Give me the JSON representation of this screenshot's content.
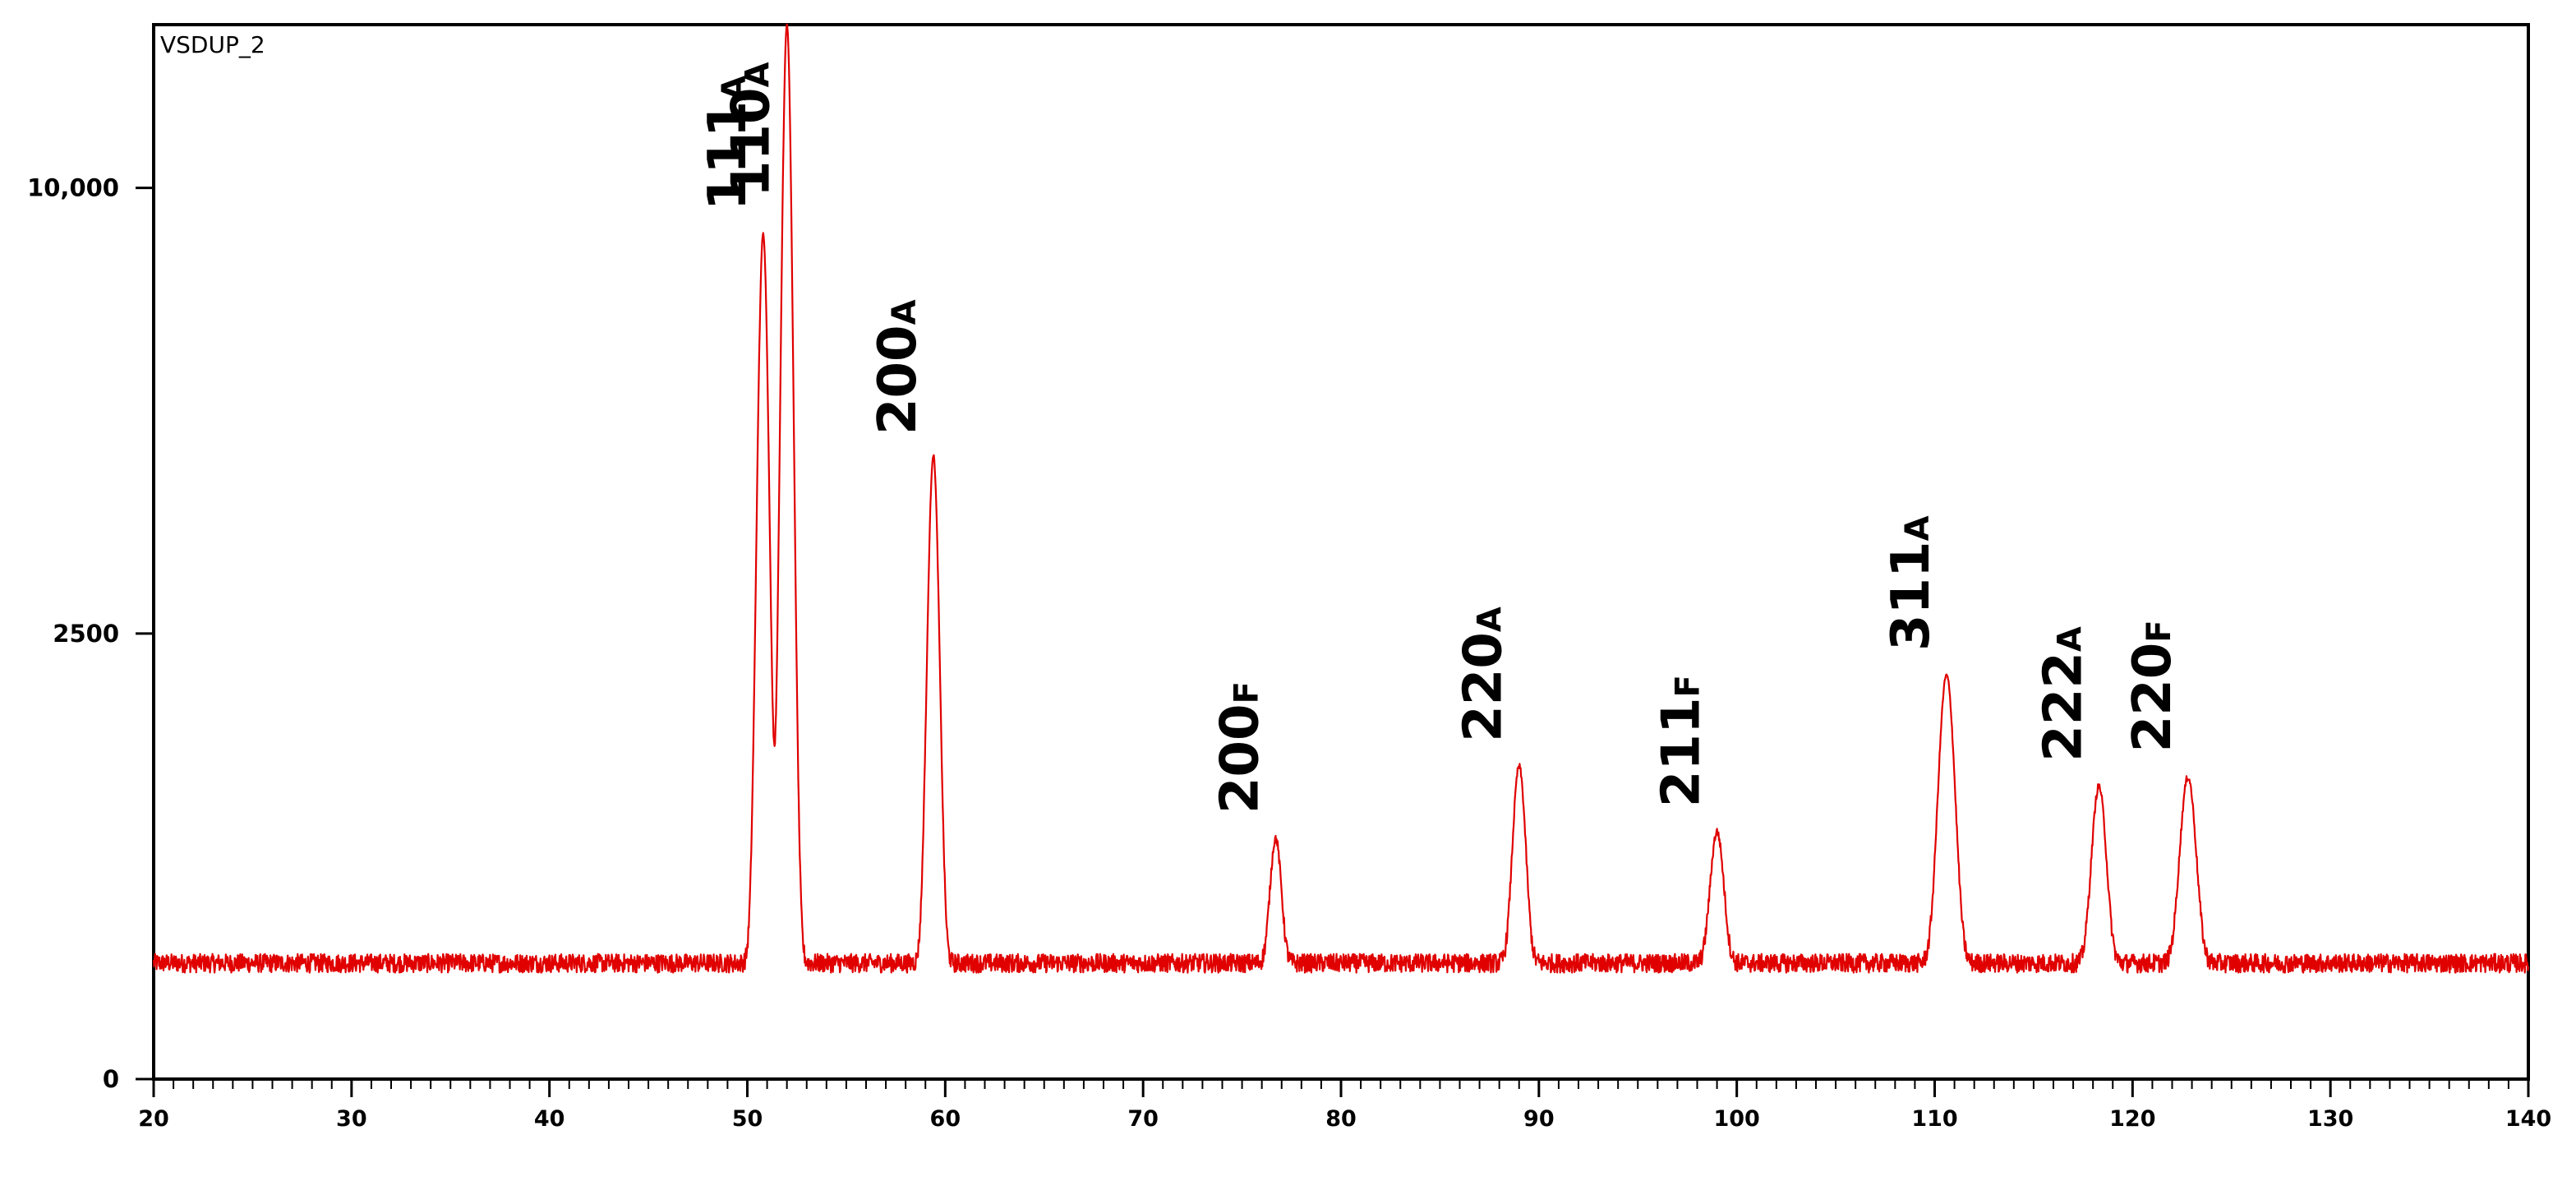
{
  "chart_data": {
    "type": "line",
    "dataset_name": "VSDUP_2",
    "xlabel": "",
    "ylabel": "",
    "xlim": [
      20,
      140
    ],
    "ylim_sqrt": [
      0,
      14000
    ],
    "y_scale": "sqrt",
    "x_major_ticks": [
      20,
      30,
      40,
      50,
      60,
      70,
      80,
      90,
      100,
      110,
      120,
      130,
      140
    ],
    "y_ticks": [
      {
        "value": 0,
        "label": "0"
      },
      {
        "value": 2500,
        "label": "2500"
      },
      {
        "value": 10000,
        "label": "10,000"
      }
    ],
    "grid": false,
    "legend": "none",
    "line_color": "#e00000",
    "baseline_intensity": 170,
    "peaks": [
      {
        "x": 50.8,
        "y": 9000,
        "width": 0.25,
        "label": "111",
        "phase": "A"
      },
      {
        "x": 52.0,
        "y": 14000,
        "width": 0.25,
        "label": "110",
        "phase": "A"
      },
      {
        "x": 59.4,
        "y": 4900,
        "width": 0.25,
        "label": "200",
        "phase": "A"
      },
      {
        "x": 76.7,
        "y": 730,
        "width": 0.25,
        "label": "200",
        "phase": "F"
      },
      {
        "x": 89.0,
        "y": 1230,
        "width": 0.28,
        "label": "220",
        "phase": "A"
      },
      {
        "x": 99.0,
        "y": 770,
        "width": 0.3,
        "label": "211",
        "phase": "F"
      },
      {
        "x": 110.6,
        "y": 2050,
        "width": 0.35,
        "label": "311",
        "phase": "A"
      },
      {
        "x": 118.3,
        "y": 1080,
        "width": 0.32,
        "label": "222",
        "phase": "A"
      },
      {
        "x": 122.8,
        "y": 1150,
        "width": 0.35,
        "label": "220",
        "phase": "F"
      }
    ]
  }
}
